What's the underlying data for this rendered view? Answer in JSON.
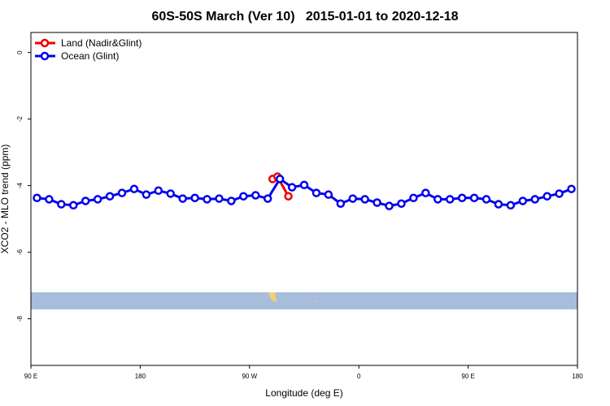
{
  "chart_data": {
    "type": "line",
    "title": "60S-50S March (Ver 10)   2015-01-01 to 2020-12-18",
    "x_label": "Longitude (deg E)",
    "y_label": "XCO2 - MLO trend (ppm)",
    "xlim": [
      90,
      540
    ],
    "xticks": [
      {
        "value": 90,
        "label": "90 E"
      },
      180,
      {
        "value": 270,
        "label": "90 W"
      },
      {
        "value": 360,
        "label": "0"
      },
      {
        "value": 450,
        "label": "90 E"
      },
      {
        "value": 540,
        "label": "180"
      }
    ],
    "ylim": [
      -9.4,
      0.6
    ],
    "yticks": [
      0,
      -2,
      -4,
      -6,
      -8
    ],
    "legend": "top-left",
    "series": [
      {
        "name": "Land (Nadir&Glint)",
        "color": "#ee0000",
        "x": [
          289,
          293,
          302
        ],
        "values": [
          -3.8,
          -3.73,
          -4.32
        ]
      },
      {
        "name": "Ocean (Glint)",
        "color": "#0000ee",
        "x": [
          95,
          105,
          115,
          125,
          135,
          145,
          155,
          165,
          175,
          185,
          195,
          205,
          215,
          225,
          235,
          245,
          255,
          265,
          275,
          285,
          295,
          305,
          315,
          325,
          335,
          345,
          355,
          365,
          375,
          385,
          395,
          405,
          415,
          425,
          435,
          445,
          455,
          465,
          475,
          485,
          495,
          505,
          515,
          525,
          535
        ],
        "values": [
          -4.37,
          -4.41,
          -4.56,
          -4.59,
          -4.46,
          -4.41,
          -4.32,
          -4.22,
          -4.1,
          -4.27,
          -4.15,
          -4.24,
          -4.39,
          -4.37,
          -4.41,
          -4.39,
          -4.46,
          -4.32,
          -4.29,
          -4.39,
          -3.8,
          -4.05,
          -3.98,
          -4.22,
          -4.27,
          -4.54,
          -4.39,
          -4.41,
          -4.51,
          -4.61,
          -4.54,
          -4.37,
          -4.22,
          -4.41,
          -4.41,
          -4.37,
          -4.37,
          -4.41,
          -4.56,
          -4.59,
          -4.46,
          -4.41,
          -4.32,
          -4.24,
          -4.1
        ]
      }
    ]
  }
}
